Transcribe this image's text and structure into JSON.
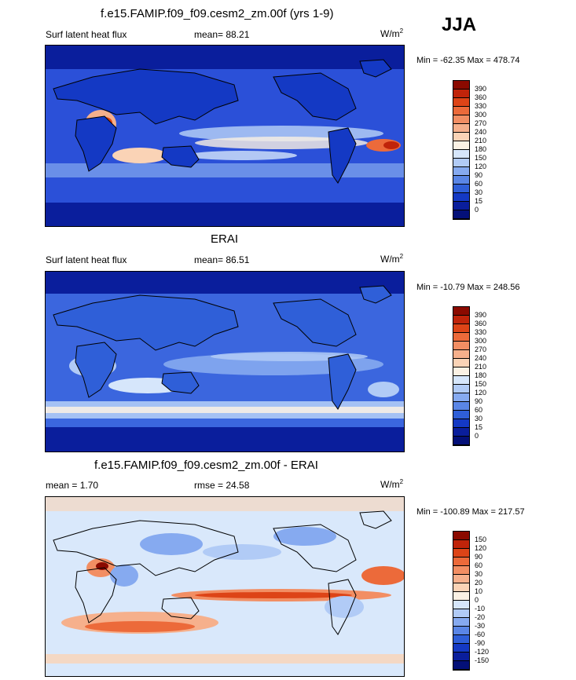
{
  "season": "JJA",
  "panels": [
    {
      "title": "f.e15.FAMIP.f09_f09.cesm2_zm.00f (yrs 1-9)",
      "left": "Surf latent heat flux",
      "center": "mean=  88.21",
      "units": "W/m",
      "units_sup": "2",
      "minmax": "Min = -62.35 Max = 478.74",
      "bg": "#2b50d8",
      "levels": [
        "390",
        "360",
        "330",
        "300",
        "270",
        "240",
        "210",
        "180",
        "150",
        "120",
        "90",
        "60",
        "30",
        "15",
        "0"
      ],
      "colors": [
        "#8b0a00",
        "#c0240a",
        "#dd4417",
        "#ec6a3a",
        "#f28e63",
        "#f6b08c",
        "#fad3b6",
        "#fbf1e4",
        "#d6e6fb",
        "#b1cbf6",
        "#86aaf0",
        "#5a86e6",
        "#2f5fd8",
        "#1439c4",
        "#0a1e9c",
        "#041078"
      ]
    },
    {
      "title": "ERAI",
      "left": "Surf latent heat flux",
      "center": "mean=  86.51",
      "units": "W/m",
      "units_sup": "2",
      "minmax": "Min = -10.79 Max = 248.56",
      "bg": "#3b66de",
      "levels": [
        "390",
        "360",
        "330",
        "300",
        "270",
        "240",
        "210",
        "180",
        "150",
        "120",
        "90",
        "60",
        "30",
        "15",
        "0"
      ],
      "colors": [
        "#8b0a00",
        "#c0240a",
        "#dd4417",
        "#ec6a3a",
        "#f28e63",
        "#f6b08c",
        "#fad3b6",
        "#fbf1e4",
        "#d6e6fb",
        "#b1cbf6",
        "#86aaf0",
        "#5a86e6",
        "#2f5fd8",
        "#1439c4",
        "#0a1e9c",
        "#041078"
      ]
    },
    {
      "title": "f.e15.FAMIP.f09_f09.cesm2_zm.00f - ERAI",
      "left": "mean =   1.70",
      "center": "rmse =  24.58",
      "units": "W/m",
      "units_sup": "2",
      "minmax": "Min = -100.89 Max = 217.57",
      "bg": "#d9e8fb",
      "levels": [
        "150",
        "120",
        "90",
        "60",
        "30",
        "20",
        "10",
        "0",
        "-10",
        "-20",
        "-30",
        "-60",
        "-90",
        "-120",
        "-150"
      ],
      "colors": [
        "#8b0a00",
        "#c0240a",
        "#dd4417",
        "#ec6a3a",
        "#f28e63",
        "#f6b08c",
        "#fad3b6",
        "#fbf1e4",
        "#d6e6fb",
        "#b1cbf6",
        "#86aaf0",
        "#5a86e6",
        "#2f5fd8",
        "#1439c4",
        "#0a1e9c",
        "#041078"
      ]
    }
  ]
}
